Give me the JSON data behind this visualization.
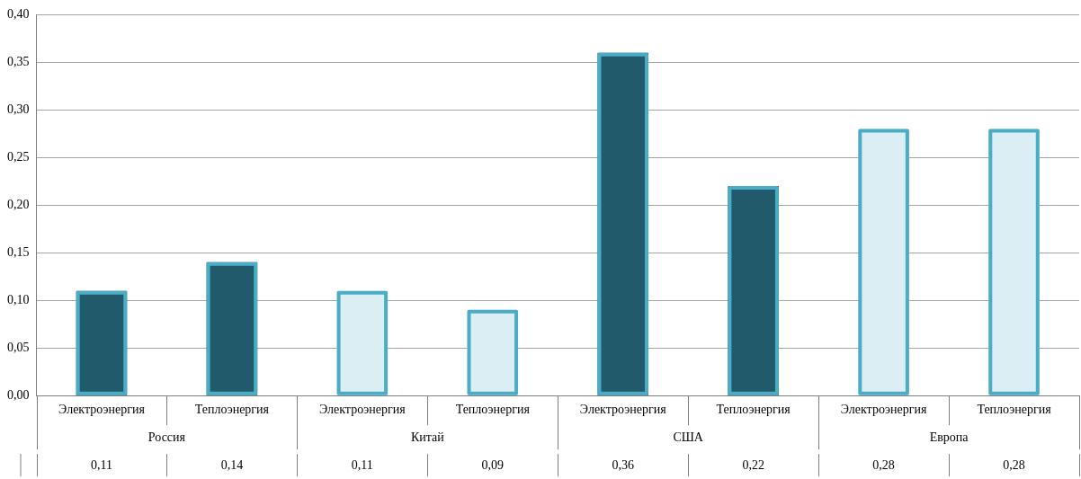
{
  "chart_data": {
    "type": "bar",
    "categories": [
      "Электроэнергия",
      "Теплоэнергия",
      "Электроэнергия",
      "Теплоэнергия",
      "Электроэнергия",
      "Теплоэнергия",
      "Электроэнергия",
      "Теплоэнергия"
    ],
    "values": [
      0.11,
      0.14,
      0.11,
      0.09,
      0.36,
      0.22,
      0.28,
      0.28
    ],
    "colors": [
      "#215a6a",
      "#215a6a",
      "#daeef3",
      "#daeef3",
      "#215a6a",
      "#215a6a",
      "#daeef3",
      "#daeef3"
    ],
    "value_labels": [
      "0,11",
      "0,14",
      "0,11",
      "0,09",
      "0,36",
      "0,22",
      "0,28",
      "0,28"
    ],
    "annotations": [
      "Россия",
      "Китай",
      "США",
      "Европа"
    ],
    "ylim": [
      0,
      0.4
    ],
    "yticks": [
      {
        "value": 0,
        "label": "0,00"
      },
      {
        "value": 0.05,
        "label": "0,05"
      },
      {
        "value": 0.1,
        "label": "0,10"
      },
      {
        "value": 0.15,
        "label": "0,15"
      },
      {
        "value": 0.2,
        "label": "0,20"
      },
      {
        "value": 0.25,
        "label": "0,25"
      },
      {
        "value": 0.3,
        "label": "0,30"
      },
      {
        "value": 0.35,
        "label": "0,35"
      },
      {
        "value": 0.4,
        "label": "0,40"
      }
    ],
    "grid": "y",
    "legend": false
  }
}
